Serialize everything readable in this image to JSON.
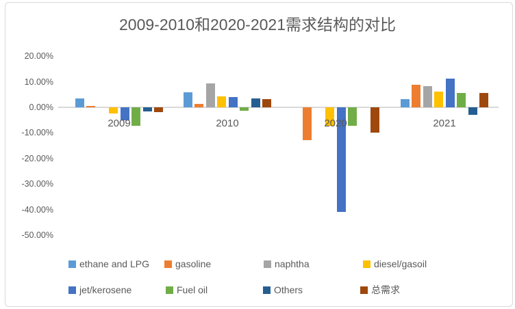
{
  "title": "2009-2010和2020-2021需求结构的对比",
  "chart_data": {
    "type": "bar",
    "title": "2009-2010和2020-2021需求结构的对比",
    "categories": [
      "2009",
      "2010",
      "2020",
      "2021"
    ],
    "series": [
      {
        "name": "ethane and LPG",
        "color": "#5B9BD5",
        "values": [
          3.6,
          6.0,
          0,
          3.1
        ]
      },
      {
        "name": "gasoline",
        "color": "#ED7D31",
        "values": [
          0.5,
          1.3,
          -12.9,
          8.9
        ]
      },
      {
        "name": "naphtha",
        "color": "#A5A5A5",
        "values": [
          0,
          9.3,
          0,
          8.3
        ]
      },
      {
        "name": "diesel/gasoil",
        "color": "#FFC000",
        "values": [
          -2.5,
          4.2,
          -7.1,
          6.2
        ]
      },
      {
        "name": "jet/kerosene",
        "color": "#4472C4",
        "values": [
          -5.1,
          3.9,
          -41.0,
          11.3
        ]
      },
      {
        "name": "Fuel oil",
        "color": "#70AD47",
        "values": [
          -7.3,
          -1.3,
          -7.3,
          5.6
        ]
      },
      {
        "name": "Others",
        "color": "#255E91",
        "values": [
          -1.6,
          3.6,
          0,
          -3.0
        ]
      },
      {
        "name": "总需求",
        "color": "#9E480E",
        "values": [
          -1.8,
          3.3,
          -9.9,
          5.5
        ]
      }
    ],
    "y_axis": {
      "unit": "percent",
      "min": -50,
      "max": 20,
      "step": 10,
      "ticks": [
        "20.00%",
        "10.00%",
        "0.00%",
        "-10.00%",
        "-20.00%",
        "-30.00%",
        "-40.00%",
        "-50.00%"
      ]
    },
    "legend_position": "bottom",
    "grid": false,
    "axis_line_color": "#D9D9D9",
    "text_color": "#595959"
  }
}
